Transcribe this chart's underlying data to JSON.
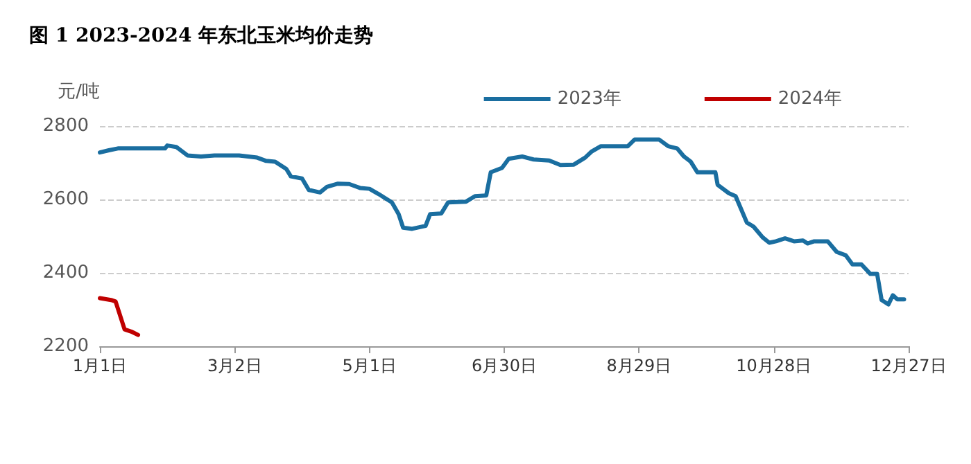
{
  "chart_data": {
    "type": "line",
    "title": "图 1 2023-2024 年东北玉米均价走势",
    "ylabel": "元/吨",
    "xlim": [
      "--01-01",
      "--12-27"
    ],
    "xticks": [
      {
        "value": "--01-01",
        "label": "1月1日"
      },
      {
        "value": "--03-02",
        "label": "3月2日"
      },
      {
        "value": "--05-01",
        "label": "5月1日"
      },
      {
        "value": "--06-30",
        "label": "6月30日"
      },
      {
        "value": "--08-29",
        "label": "8月29日"
      },
      {
        "value": "--10-28",
        "label": "10月28日"
      },
      {
        "value": "--12-27",
        "label": "12月27日"
      }
    ],
    "ylim": [
      2200,
      2800
    ],
    "yticks": [
      2200,
      2400,
      2600,
      2800
    ],
    "grid": "y",
    "legend": "top right",
    "line_style": "solid",
    "marker": "none",
    "series": [
      {
        "name": "2023年",
        "color": "#1a6ea0",
        "x": [
          "--01-01",
          "--01-05",
          "--01-09",
          "--01-30",
          "--01-31",
          "--02-04",
          "--02-09",
          "--02-15",
          "--02-21",
          "--03-04",
          "--03-12",
          "--03-16",
          "--03-20",
          "--03-25",
          "--03-27",
          "--04-01",
          "--04-04",
          "--04-09",
          "--04-12",
          "--04-17",
          "--04-22",
          "--04-27",
          "--05-01",
          "--05-05",
          "--05-11",
          "--05-14",
          "--05-16",
          "--05-20",
          "--05-26",
          "--05-28",
          "--06-02",
          "--06-05",
          "--06-13",
          "--06-17",
          "--06-22",
          "--06-24",
          "--06-29",
          "--07-02",
          "--07-08",
          "--07-13",
          "--07-20",
          "--07-25",
          "--07-31",
          "--08-05",
          "--08-08",
          "--08-12",
          "--08-24",
          "--08-27",
          "--09-07",
          "--09-11",
          "--09-15",
          "--09-18",
          "--09-21",
          "--09-24",
          "--10-02",
          "--10-03",
          "--10-08",
          "--10-11",
          "--10-16",
          "--10-19",
          "--10-23",
          "--10-26",
          "--10-29",
          "--11-02",
          "--11-06",
          "--11-10",
          "--11-12",
          "--11-15",
          "--11-21",
          "--11-25",
          "--11-29",
          "--12-02",
          "--12-06",
          "--12-10",
          "--12-13",
          "--12-15",
          "--12-18",
          "--12-20",
          "--12-22",
          "--12-25"
        ],
        "values": [
          2728,
          2734,
          2739,
          2739,
          2747,
          2743,
          2720,
          2717,
          2720,
          2720,
          2714,
          2705,
          2703,
          2683,
          2663,
          2657,
          2626,
          2619,
          2634,
          2643,
          2642,
          2631,
          2629,
          2615,
          2592,
          2560,
          2523,
          2520,
          2528,
          2560,
          2562,
          2592,
          2594,
          2609,
          2611,
          2674,
          2686,
          2711,
          2717,
          2709,
          2706,
          2694,
          2695,
          2714,
          2731,
          2745,
          2745,
          2763,
          2763,
          2745,
          2739,
          2717,
          2703,
          2674,
          2674,
          2640,
          2617,
          2609,
          2537,
          2526,
          2497,
          2482,
          2486,
          2494,
          2486,
          2488,
          2480,
          2486,
          2486,
          2457,
          2448,
          2423,
          2423,
          2397,
          2397,
          2326,
          2314,
          2339,
          2328,
          2328
        ]
      },
      {
        "name": "2024年",
        "color": "#c00000",
        "x": [
          "--01-01",
          "--01-06",
          "--01-08",
          "--01-12",
          "--01-15",
          "--01-18"
        ],
        "values": [
          2331,
          2326,
          2322,
          2246,
          2240,
          2231
        ]
      }
    ]
  }
}
